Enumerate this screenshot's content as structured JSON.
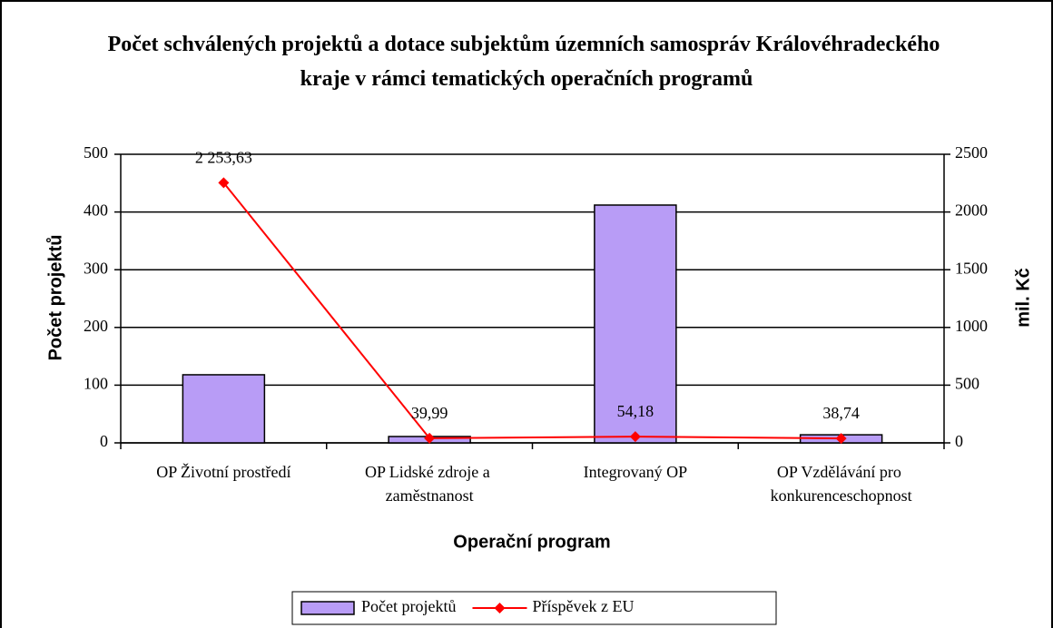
{
  "chart_data": {
    "type": "bar+line",
    "title": "Počet schválených projektů a dotace subjektům územních samospráv Královéhradeckého kraje v rámci tematických operačních programů",
    "xlabel": "Operační program",
    "ylabel": "Počet projektů",
    "y2label": "mil. Kč",
    "categories": [
      "OP Životní prostředí",
      "OP Lidské zdroje a zaměstnanost",
      "Integrovaný OP",
      "OP Vzdělávání pro konkurenceschopnost"
    ],
    "series": [
      {
        "name": "Počet projektů",
        "type": "bar",
        "color": "#b89cf6",
        "values": [
          118,
          11,
          412,
          14
        ]
      },
      {
        "name": "Příspěvek z EU",
        "type": "line",
        "color": "#ff0000",
        "axis": "y2",
        "values": [
          2253.63,
          39.99,
          54.18,
          38.74
        ],
        "value_labels": [
          "2 253,63",
          "39,99",
          "54,18",
          "38,74"
        ]
      }
    ],
    "ylim": [
      0,
      500
    ],
    "yticks": [
      0,
      100,
      200,
      300,
      400,
      500
    ],
    "y2lim": [
      0,
      2500
    ],
    "y2ticks": [
      0,
      500,
      1000,
      1500,
      2000,
      2500
    ],
    "grid": true,
    "legend": "bottom"
  }
}
